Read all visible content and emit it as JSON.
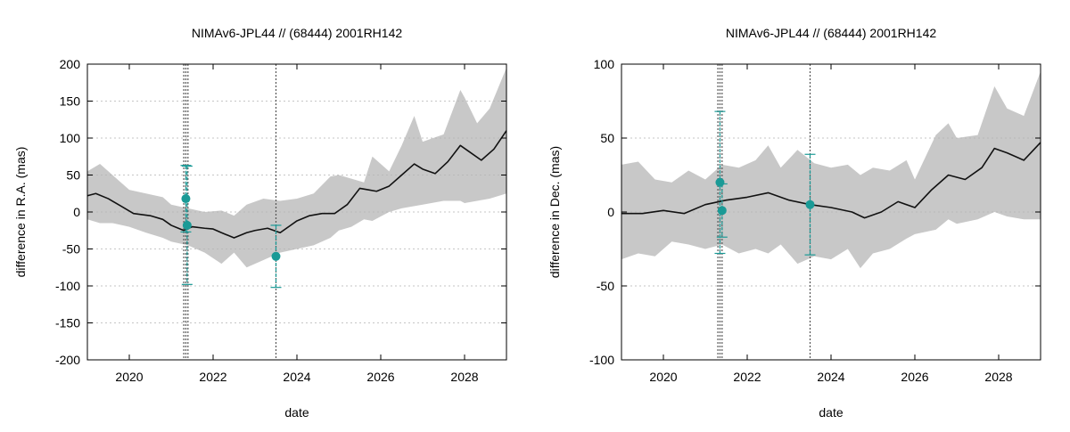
{
  "chart_data": [
    {
      "type": "line",
      "title": "NIMAv6-JPL44 // (68444) 2001RH142",
      "xlabel": "date",
      "ylabel": "difference in R.A. (mas)",
      "xlim": [
        2019.0,
        2029.0
      ],
      "ylim": [
        -200,
        200
      ],
      "xticks": [
        2020,
        2022,
        2024,
        2026,
        2028
      ],
      "yticks": [
        -200,
        -150,
        -100,
        -50,
        0,
        50,
        100,
        150,
        200
      ],
      "grid": true,
      "vlines": [
        2021.3,
        2021.35,
        2021.4,
        2023.5
      ],
      "uncertainty_band": {
        "x": [
          2019.0,
          2019.3,
          2019.6,
          2020.0,
          2020.4,
          2020.8,
          2021.0,
          2021.4,
          2021.8,
          2022.2,
          2022.5,
          2022.8,
          2023.2,
          2023.6,
          2024.0,
          2024.4,
          2024.8,
          2025.0,
          2025.3,
          2025.6,
          2025.8,
          2026.2,
          2026.5,
          2026.8,
          2027.0,
          2027.5,
          2027.9,
          2028.0,
          2028.3,
          2028.6,
          2029.0
        ],
        "upper": [
          55,
          65,
          50,
          30,
          25,
          20,
          10,
          5,
          0,
          2,
          -5,
          10,
          18,
          15,
          18,
          25,
          48,
          50,
          45,
          40,
          75,
          55,
          90,
          130,
          95,
          105,
          165,
          155,
          120,
          140,
          195
        ],
        "lower": [
          -10,
          -15,
          -15,
          -20,
          -28,
          -35,
          -40,
          -45,
          -55,
          -70,
          -55,
          -75,
          -65,
          -55,
          -50,
          -45,
          -35,
          -25,
          -20,
          -10,
          -12,
          0,
          5,
          8,
          10,
          15,
          15,
          12,
          15,
          18,
          25
        ]
      },
      "series": [
        {
          "name": "NIMAv6-JPL44",
          "x": [
            2019.0,
            2019.2,
            2019.5,
            2019.8,
            2020.1,
            2020.5,
            2020.8,
            2021.0,
            2021.3,
            2021.5,
            2021.8,
            2022.0,
            2022.2,
            2022.5,
            2022.8,
            2023.0,
            2023.3,
            2023.6,
            2023.8,
            2024.0,
            2024.3,
            2024.6,
            2024.9,
            2025.2,
            2025.5,
            2025.7,
            2025.9,
            2026.2,
            2026.5,
            2026.8,
            2027.0,
            2027.3,
            2027.6,
            2027.9,
            2028.1,
            2028.4,
            2028.7,
            2029.0
          ],
          "values": [
            22,
            25,
            18,
            8,
            -2,
            -5,
            -10,
            -18,
            -25,
            -20,
            -22,
            -23,
            -28,
            -35,
            -28,
            -25,
            -22,
            -28,
            -20,
            -12,
            -5,
            -2,
            -2,
            10,
            32,
            30,
            28,
            35,
            50,
            65,
            58,
            52,
            68,
            90,
            82,
            70,
            85,
            110
          ]
        }
      ],
      "observations": {
        "x": [
          2021.35,
          2021.38,
          2023.5
        ],
        "values": [
          18,
          -18,
          -60
        ],
        "error": [
          45,
          80,
          42
        ]
      }
    },
    {
      "type": "line",
      "title": "NIMAv6-JPL44 // (68444) 2001RH142",
      "xlabel": "date",
      "ylabel": "difference in Dec. (mas)",
      "xlim": [
        2019.0,
        2029.0
      ],
      "ylim": [
        -100,
        100
      ],
      "xticks": [
        2020,
        2022,
        2024,
        2026,
        2028
      ],
      "yticks": [
        -100,
        -50,
        0,
        50,
        100
      ],
      "grid": true,
      "vlines": [
        2021.3,
        2021.35,
        2021.4,
        2023.5
      ],
      "uncertainty_band": {
        "x": [
          2019.0,
          2019.4,
          2019.8,
          2020.2,
          2020.6,
          2021.0,
          2021.4,
          2021.8,
          2022.2,
          2022.5,
          2022.8,
          2023.2,
          2023.6,
          2024.0,
          2024.4,
          2024.7,
          2025.0,
          2025.4,
          2025.8,
          2026.0,
          2026.5,
          2026.8,
          2027.0,
          2027.5,
          2027.9,
          2028.2,
          2028.6,
          2029.0
        ],
        "upper": [
          32,
          34,
          22,
          20,
          28,
          22,
          32,
          30,
          35,
          45,
          30,
          42,
          33,
          30,
          32,
          25,
          30,
          28,
          35,
          22,
          52,
          60,
          50,
          52,
          85,
          70,
          65,
          95
        ],
        "lower": [
          -32,
          -28,
          -30,
          -20,
          -22,
          -25,
          -22,
          -28,
          -25,
          -28,
          -22,
          -35,
          -30,
          -32,
          -25,
          -38,
          -28,
          -25,
          -18,
          -15,
          -12,
          -5,
          -8,
          -5,
          0,
          -3,
          -5,
          -5
        ]
      },
      "series": [
        {
          "name": "NIMAv6-JPL44",
          "x": [
            2019.0,
            2019.5,
            2020.0,
            2020.5,
            2021.0,
            2021.5,
            2022.0,
            2022.5,
            2023.0,
            2023.5,
            2024.0,
            2024.5,
            2024.8,
            2025.2,
            2025.6,
            2026.0,
            2026.4,
            2026.8,
            2027.2,
            2027.6,
            2027.9,
            2028.2,
            2028.6,
            2029.0
          ],
          "values": [
            -1,
            -1,
            1,
            -1,
            5,
            8,
            10,
            13,
            8,
            5,
            3,
            0,
            -4,
            0,
            7,
            3,
            15,
            25,
            22,
            30,
            43,
            40,
            35,
            47
          ]
        }
      ],
      "observations": {
        "x": [
          2021.35,
          2021.4,
          2023.5
        ],
        "values": [
          20,
          1,
          5
        ],
        "error": [
          48,
          18,
          34
        ]
      }
    }
  ]
}
